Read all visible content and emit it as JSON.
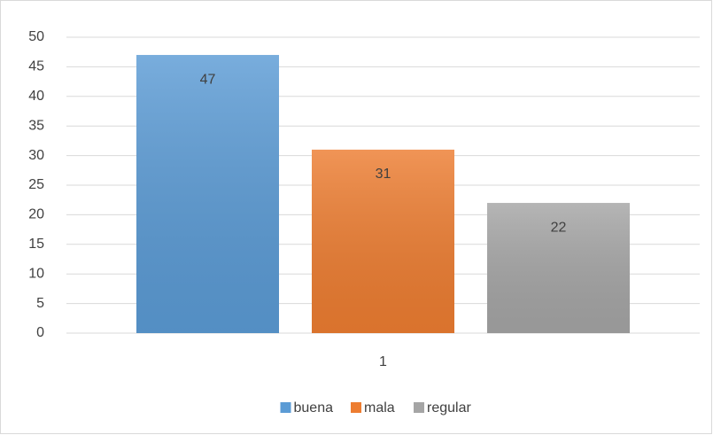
{
  "chart_data": {
    "type": "bar",
    "categories": [
      "1"
    ],
    "series": [
      {
        "name": "buena",
        "color": "#5b9bd5",
        "values": [
          47
        ]
      },
      {
        "name": "mala",
        "color": "#ed7d31",
        "values": [
          31
        ]
      },
      {
        "name": "regular",
        "color": "#a5a5a5",
        "values": [
          22
        ]
      }
    ],
    "ylim": [
      0,
      50
    ],
    "yticks": [
      0,
      5,
      10,
      15,
      20,
      25,
      30,
      35,
      40,
      45,
      50
    ],
    "grid": true,
    "data_labels": true,
    "legend": "bottom"
  }
}
